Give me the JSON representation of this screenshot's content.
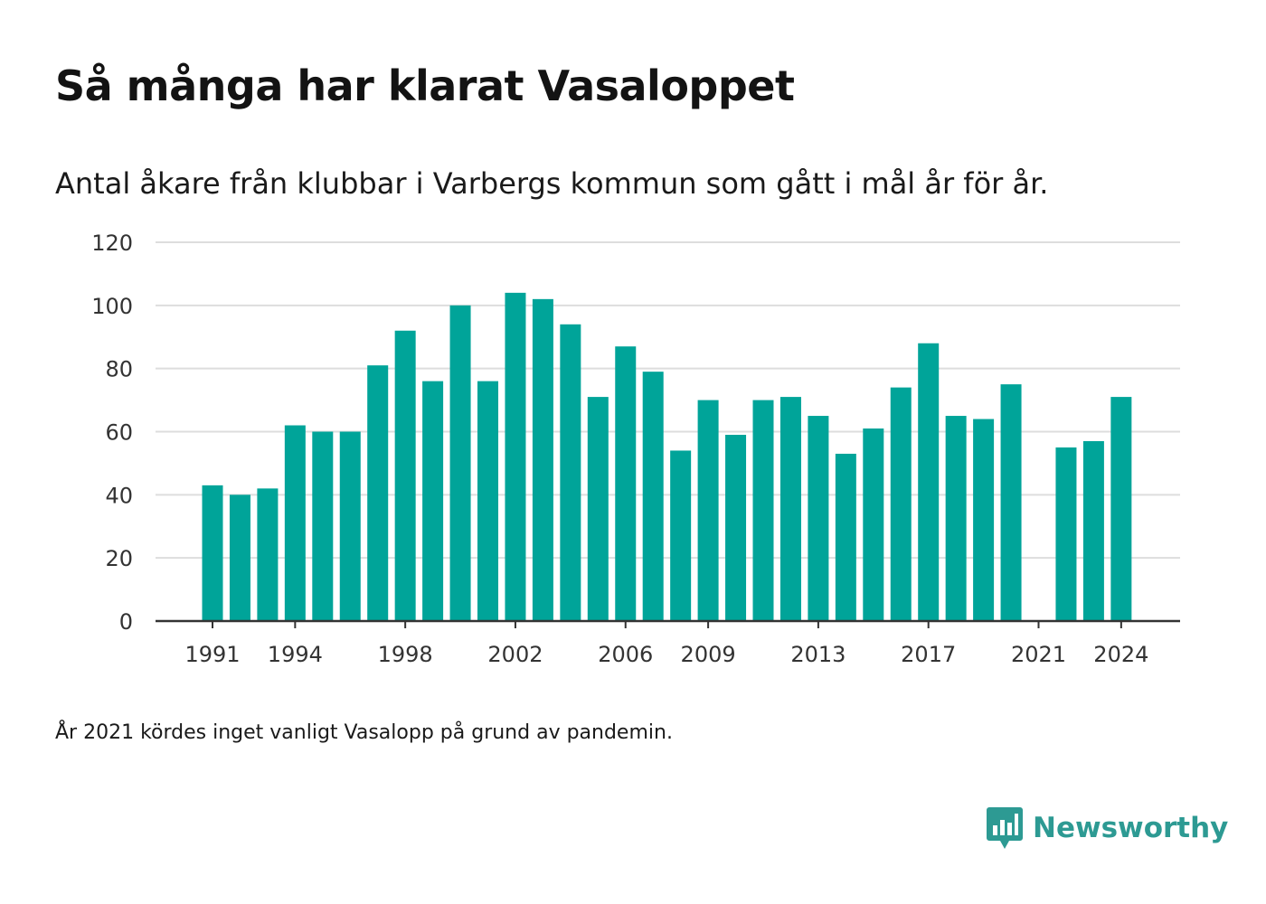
{
  "title": "Så många har klarat Vasaloppet",
  "subtitle": "Antal åkare från klubbar i Varbergs kommun som gått i mål år för år.",
  "footnote": "År 2021 kördes inget vanligt Vasalopp på grund av pandemin.",
  "brand": {
    "name": "Newsworthy",
    "icon": "newsworthy-logo-icon",
    "color": "#2d9a93"
  },
  "chart_data": {
    "type": "bar",
    "title": "Så många har klarat Vasaloppet",
    "subtitle": "Antal åkare från klubbar i Varbergs kommun som gått i mål år för år.",
    "xlabel": "",
    "ylabel": "",
    "bar_color": "#00a499",
    "grid": true,
    "ylim": [
      0,
      120
    ],
    "yticks": [
      "0",
      "20",
      "40",
      "60",
      "80",
      "100",
      "120"
    ],
    "xticks": [
      "1991",
      "1994",
      "1998",
      "2002",
      "2006",
      "2009",
      "2013",
      "2017",
      "2021",
      "2024"
    ],
    "categories": [
      1991,
      1992,
      1993,
      1994,
      1995,
      1996,
      1997,
      1998,
      1999,
      2000,
      2001,
      2002,
      2003,
      2004,
      2005,
      2006,
      2007,
      2008,
      2009,
      2010,
      2011,
      2012,
      2013,
      2014,
      2015,
      2016,
      2017,
      2018,
      2019,
      2020,
      2021,
      2022,
      2023,
      2024
    ],
    "values": [
      43,
      40,
      42,
      62,
      60,
      60,
      81,
      92,
      76,
      100,
      76,
      104,
      102,
      94,
      71,
      87,
      79,
      54,
      70,
      59,
      70,
      71,
      65,
      53,
      61,
      74,
      88,
      65,
      64,
      75,
      null,
      55,
      57,
      71
    ]
  }
}
